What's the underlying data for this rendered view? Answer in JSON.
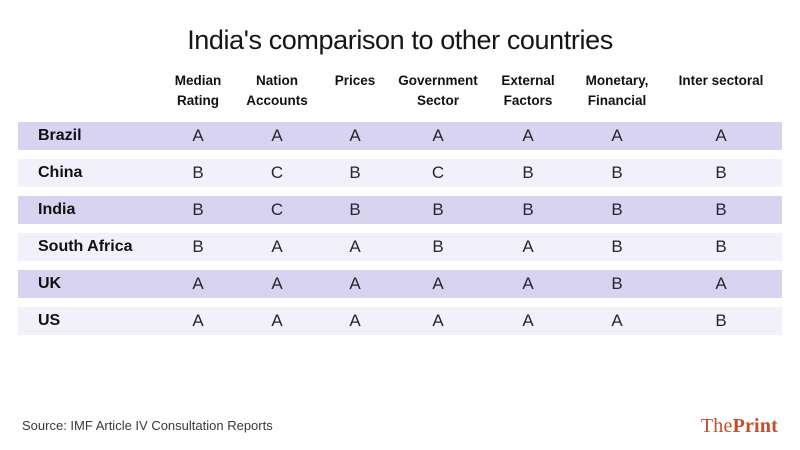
{
  "title": "India's comparison to other countries",
  "chart_data": {
    "type": "table",
    "title": "India's comparison to other countries",
    "columns": [
      "Median Rating",
      "Nation Accounts",
      "Prices",
      "Government Sector",
      "External Factors",
      "Monetary, Financial",
      "Inter sectoral"
    ],
    "rows": [
      {
        "country": "Brazil",
        "values": [
          "A",
          "A",
          "A",
          "A",
          "A",
          "A",
          "A"
        ]
      },
      {
        "country": "China",
        "values": [
          "B",
          "C",
          "B",
          "C",
          "B",
          "B",
          "B"
        ]
      },
      {
        "country": "India",
        "values": [
          "B",
          "C",
          "B",
          "B",
          "B",
          "B",
          "B"
        ]
      },
      {
        "country": "South Africa",
        "values": [
          "B",
          "A",
          "A",
          "B",
          "A",
          "B",
          "B"
        ]
      },
      {
        "country": "UK",
        "values": [
          "A",
          "A",
          "A",
          "A",
          "A",
          "B",
          "A"
        ]
      },
      {
        "country": "US",
        "values": [
          "A",
          "A",
          "A",
          "A",
          "A",
          "A",
          "B"
        ]
      }
    ],
    "layout": {
      "row_band_colors_alternate": true,
      "first_column_header": ""
    }
  },
  "footer": {
    "source": "Source: IMF Article IV Consultation Reports",
    "brand_the": "The",
    "brand_print": "Print"
  },
  "colors": {
    "row_dark": "#d8d3f1",
    "row_light": "#f2f0fb",
    "brand": "#c44e2b",
    "background": "#ffffff"
  }
}
